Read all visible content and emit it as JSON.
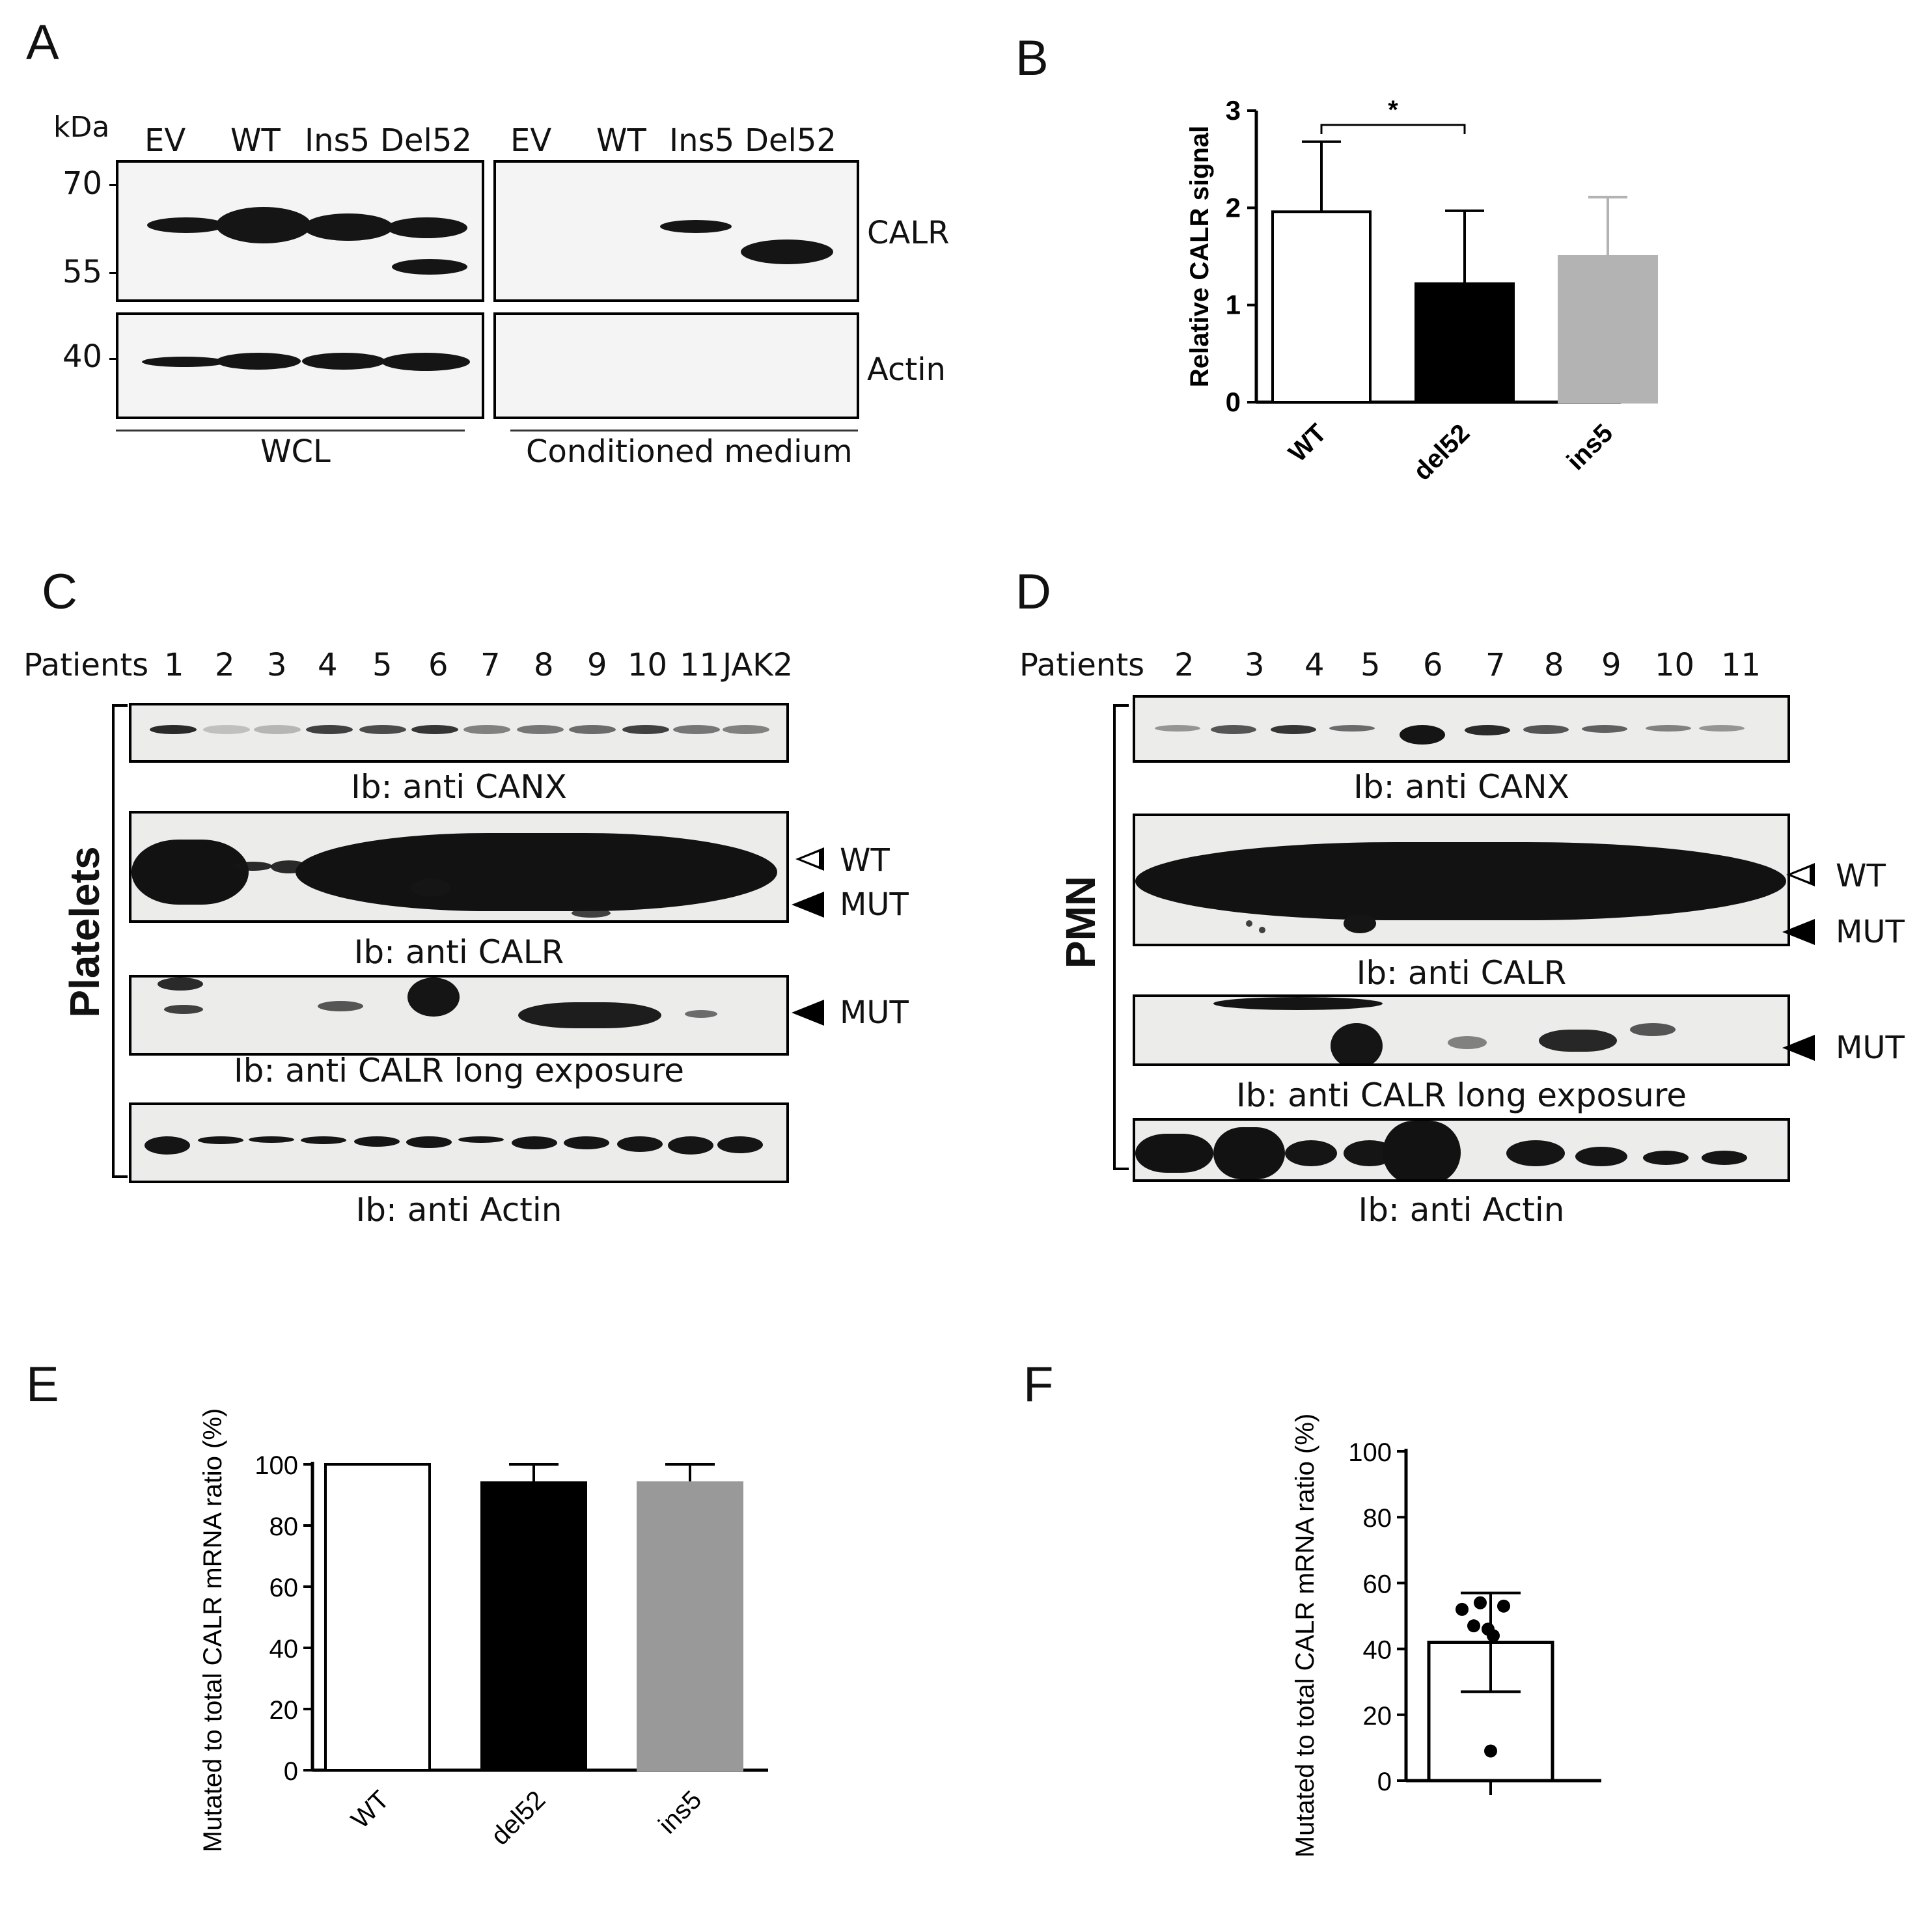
{
  "panels": {
    "A": {
      "label": "A",
      "kda": "kDa",
      "markers": [
        "70",
        "55",
        "40"
      ],
      "lanes_left": [
        "EV",
        "WT",
        "Ins5",
        "Del52"
      ],
      "lanes_right": [
        "EV",
        "WT",
        "Ins5",
        "Del52"
      ],
      "row_labels": [
        "CALR",
        "Actin"
      ],
      "group_left": "WCL",
      "group_right": "Conditioned medium"
    },
    "B": {
      "label": "B"
    },
    "C": {
      "label": "C",
      "patients_label": "Patients",
      "patients": [
        "1",
        "2",
        "3",
        "4",
        "5",
        "6",
        "7",
        "8",
        "9",
        "10",
        "11",
        "JAK2"
      ],
      "side_label": "Platelets",
      "captions": [
        "Ib: anti CANX",
        "Ib: anti CALR",
        "Ib: anti CALR long exposure",
        "Ib: anti Actin"
      ],
      "marks": [
        "WT",
        "MUT",
        "MUT"
      ]
    },
    "D": {
      "label": "D",
      "patients_label": "Patients",
      "patients": [
        "2",
        "3",
        "4",
        "5",
        "6",
        "7",
        "8",
        "9",
        "10",
        "11"
      ],
      "side_label": "PMN",
      "captions": [
        "Ib: anti CANX",
        "Ib: anti CALR",
        "Ib: anti CALR long exposure",
        "Ib: anti Actin"
      ],
      "marks": [
        "WT",
        "MUT",
        "MUT"
      ]
    },
    "E": {
      "label": "E"
    },
    "F": {
      "label": "F"
    }
  },
  "chart_data": [
    {
      "panel": "B",
      "type": "bar",
      "categories": [
        "WT",
        "del52",
        "ins5"
      ],
      "values": [
        1.96,
        1.22,
        1.5
      ],
      "errors": [
        0.72,
        0.75,
        0.61
      ],
      "colors": [
        "#ffffff",
        "#000000",
        "#b3b3b3"
      ],
      "ylabel": "Relative CALR signal",
      "ylim": [
        0,
        3
      ],
      "yticks": [
        "0",
        "1",
        "2",
        "3"
      ],
      "significance": {
        "from": "WT",
        "to": "del52",
        "mark": "*"
      }
    },
    {
      "panel": "E",
      "type": "bar",
      "categories": [
        "WT",
        "del52",
        "ins5"
      ],
      "values": [
        100,
        94,
        94
      ],
      "errors": [
        0,
        6,
        6
      ],
      "colors": [
        "#ffffff",
        "#000000",
        "#999999"
      ],
      "ylabel": "Mutated to total CALR mRNA ratio (%)",
      "ylim": [
        0,
        100
      ],
      "yticks": [
        "0",
        "20",
        "40",
        "60",
        "80",
        "100"
      ]
    },
    {
      "panel": "F",
      "type": "scatter",
      "bar_mean": 42,
      "error_high": 57,
      "error_low": 27,
      "points": [
        52,
        54,
        53,
        47,
        44,
        46,
        9
      ],
      "ylabel": "Mutated to total CALR mRNA ratio (%)",
      "ylim": [
        0,
        100
      ],
      "yticks": [
        "0",
        "20",
        "40",
        "60",
        "80",
        "100"
      ]
    }
  ]
}
